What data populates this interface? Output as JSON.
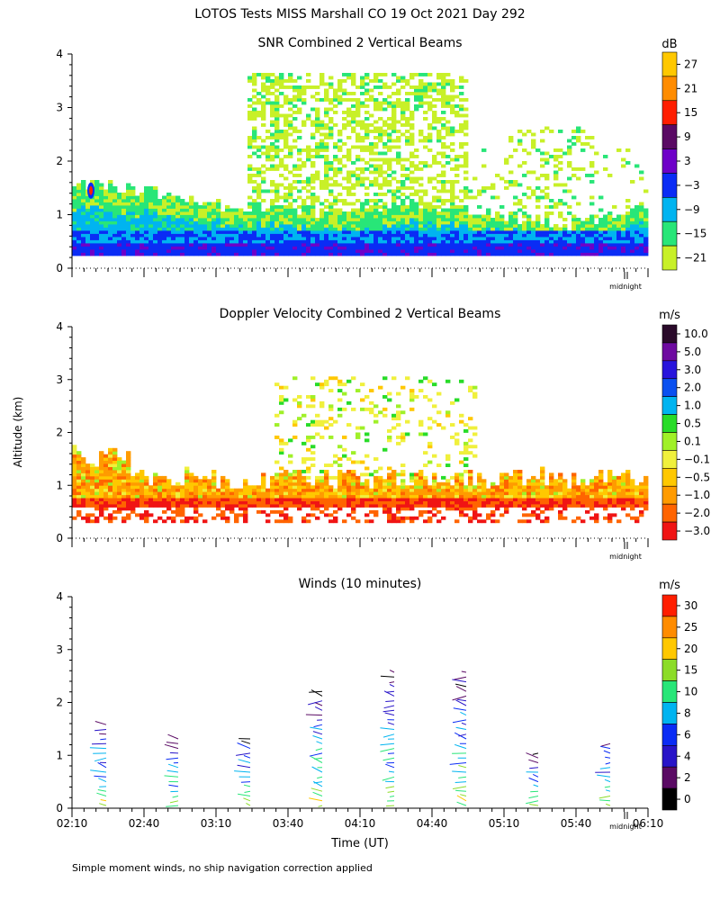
{
  "title": "LOTOS Tests MISS Marshall CO  19 Oct 2021 Day 292",
  "footnote": "Simple moment winds, no ship navigation correction applied",
  "shared": {
    "ylabel": "Altitude (km)",
    "xlabel": "Time (UT)",
    "x_ticks": [
      "02:10",
      "02:40",
      "03:10",
      "03:40",
      "04:10",
      "04:40",
      "05:10",
      "05:40",
      "06:10"
    ],
    "y_ticks": [
      "0",
      "1",
      "2",
      "3",
      "4"
    ],
    "midnight_label": "midnight"
  },
  "chart_data": [
    {
      "type": "heatmap",
      "title": "SNR Combined 2 Vertical Beams",
      "unit": "dB",
      "xlim": [
        "02:10",
        "06:10"
      ],
      "ylim": [
        0,
        4
      ],
      "colorbar": [
        {
          "label": "27",
          "color": "#ffc800"
        },
        {
          "label": "21",
          "color": "#ff8c00"
        },
        {
          "label": "15",
          "color": "#ff1e00"
        },
        {
          "label": "9",
          "color": "#5a0a64"
        },
        {
          "label": "3",
          "color": "#6e00c8"
        },
        {
          "label": "−3",
          "color": "#0a2cf5"
        },
        {
          "label": "−9",
          "color": "#00b4f0"
        },
        {
          "label": "−15",
          "color": "#28e678"
        },
        {
          "label": "−21",
          "color": "#c8f028"
        }
      ],
      "profile_summary": {
        "echo_top_km": [
          1.6,
          1.5,
          1.4,
          1.2,
          1.1,
          1.15,
          1.0,
          1.1,
          1.2,
          1.1,
          1.0,
          0.9,
          0.8,
          0.9,
          1.2
        ],
        "upper_patches_km": [
          [
            2.3,
            3.2
          ],
          [
            2.0,
            3.6
          ],
          [
            2.2,
            3.4
          ],
          [
            2.0,
            2.5
          ]
        ]
      }
    },
    {
      "type": "heatmap",
      "title": "Doppler Velocity Combined 2 Vertical Beams",
      "unit": "m/s",
      "xlim": [
        "02:10",
        "06:10"
      ],
      "ylim": [
        0,
        4
      ],
      "colorbar": [
        {
          "label": "10.0",
          "color": "#2a0a2a"
        },
        {
          "label": "5.0",
          "color": "#6e0aa0"
        },
        {
          "label": "3.0",
          "color": "#2814dc"
        },
        {
          "label": "2.0",
          "color": "#0a50f0"
        },
        {
          "label": "1.0",
          "color": "#00b4f0"
        },
        {
          "label": "0.5",
          "color": "#28dc28"
        },
        {
          "label": "0.1",
          "color": "#a0f028"
        },
        {
          "label": "−0.1",
          "color": "#f0f03c"
        },
        {
          "label": "−0.5",
          "color": "#ffc800"
        },
        {
          "label": "−1.0",
          "color": "#ff9b00"
        },
        {
          "label": "−2.0",
          "color": "#ff6400"
        },
        {
          "label": "−3.0",
          "color": "#f01414"
        }
      ]
    },
    {
      "type": "scatter",
      "title": "Winds (10 minutes)",
      "unit": "m/s",
      "xlim": [
        "02:10",
        "06:10"
      ],
      "ylim": [
        0,
        4
      ],
      "colorbar": [
        {
          "label": "30",
          "color": "#ff1e00"
        },
        {
          "label": "25",
          "color": "#ff8c00"
        },
        {
          "label": "20",
          "color": "#ffc800"
        },
        {
          "label": "15",
          "color": "#8cdc28"
        },
        {
          "label": "10",
          "color": "#28e678"
        },
        {
          "label": "8",
          "color": "#00b4f0"
        },
        {
          "label": "6",
          "color": "#0a2cf5"
        },
        {
          "label": "4",
          "color": "#2814c8"
        },
        {
          "label": "2",
          "color": "#5a0a64"
        },
        {
          "label": "0",
          "color": "#000000"
        }
      ],
      "profile_times": [
        "02:25",
        "02:55",
        "03:25",
        "03:55",
        "04:25",
        "04:55",
        "05:25",
        "05:55"
      ],
      "profile_tops_km": [
        1.6,
        1.4,
        1.4,
        2.3,
        2.6,
        2.6,
        1.1,
        1.3
      ]
    }
  ]
}
